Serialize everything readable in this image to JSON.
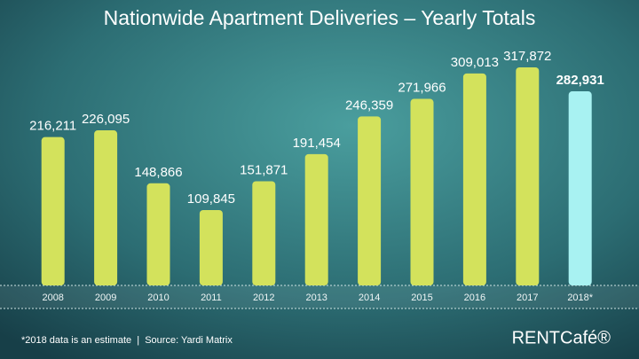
{
  "chart_data": {
    "type": "bar",
    "title": "Nationwide Apartment Deliveries – Yearly Totals",
    "categories": [
      "2008",
      "2009",
      "2010",
      "2011",
      "2012",
      "2013",
      "2014",
      "2015",
      "2016",
      "2017",
      "2018*"
    ],
    "values": [
      216211,
      226095,
      148866,
      109845,
      151871,
      191454,
      246359,
      271966,
      309013,
      317872,
      282931
    ],
    "value_labels": [
      "216,211",
      "226,095",
      "148,866",
      "109,845",
      "151,871",
      "191,454",
      "246,359",
      "271,966",
      "309,013",
      "317,872",
      "282,931"
    ],
    "colors": [
      "#d3e25c",
      "#d3e25c",
      "#d3e25c",
      "#d3e25c",
      "#d3e25c",
      "#d3e25c",
      "#d3e25c",
      "#d3e25c",
      "#d3e25c",
      "#d3e25c",
      "#a8f2f2"
    ],
    "footnote": "*2018 data is an estimate  |  Source: Yardi Matrix",
    "logo": "RENTCafé®"
  }
}
